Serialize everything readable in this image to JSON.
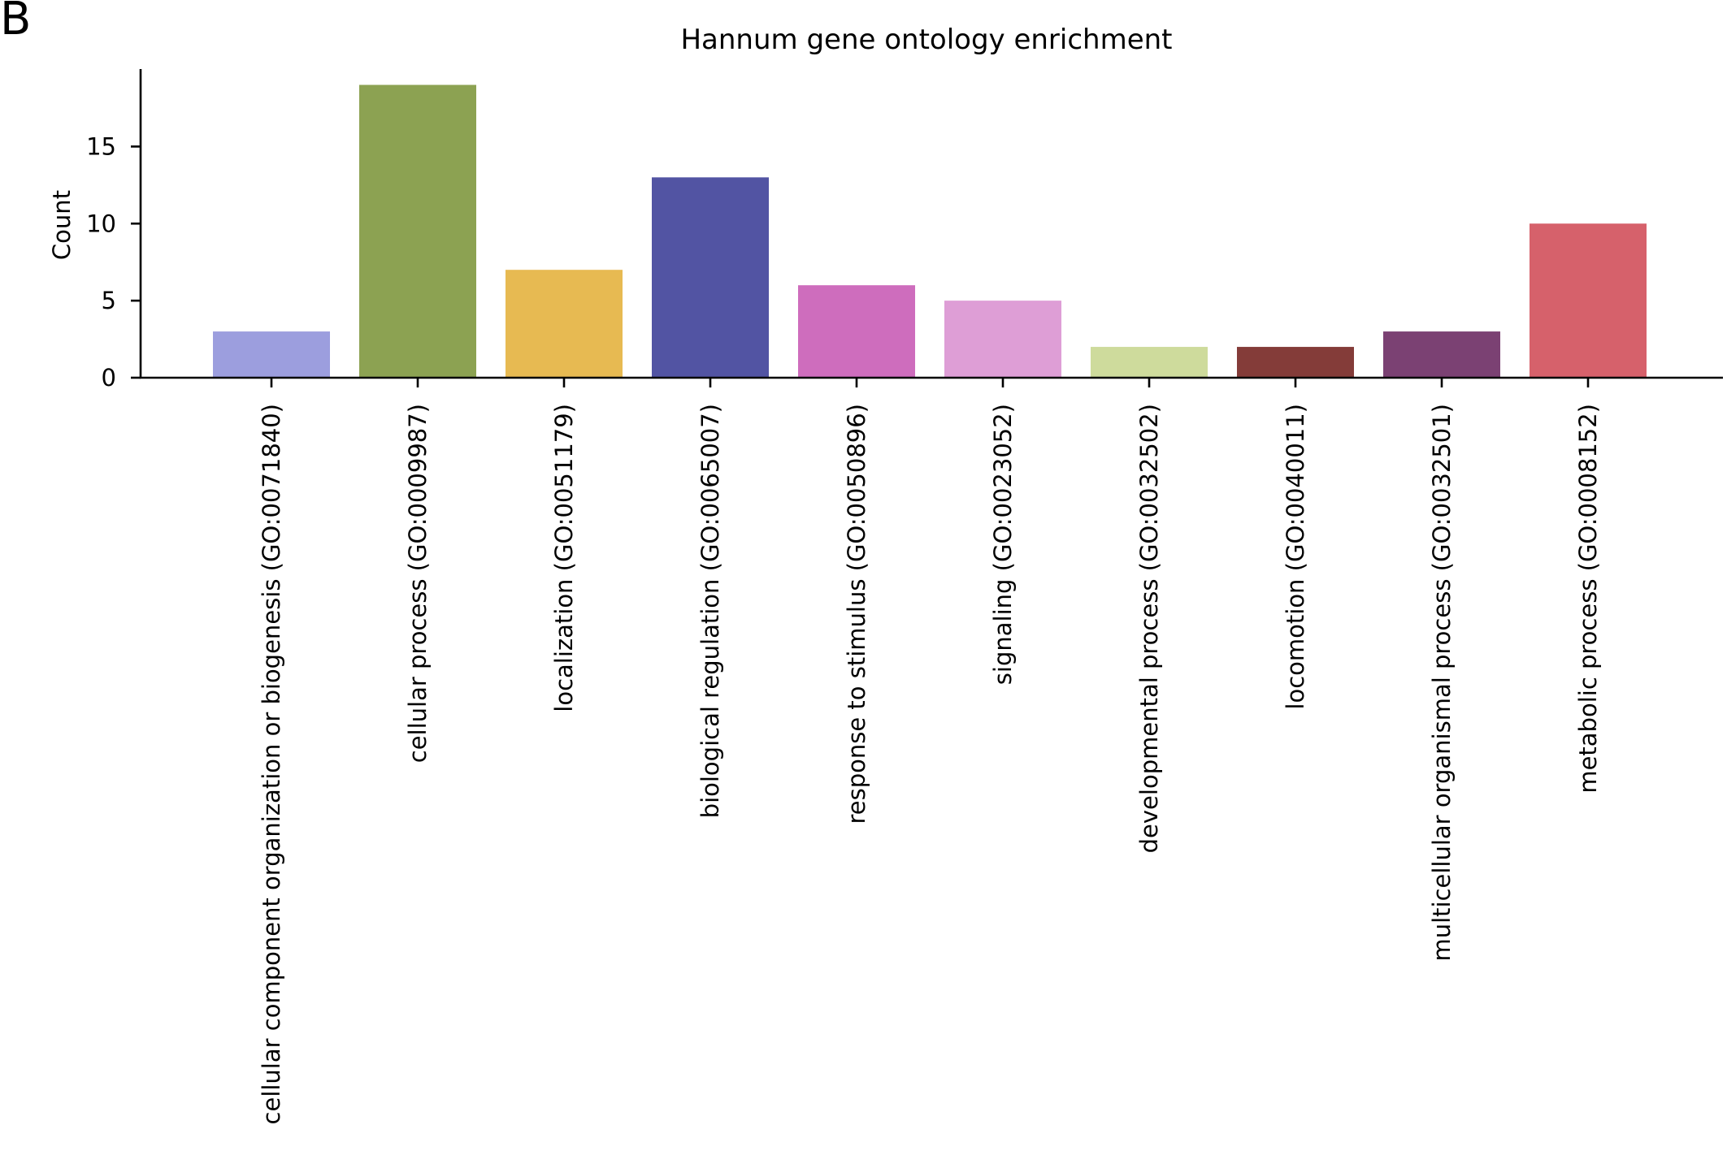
{
  "panel_label": "B",
  "chart_data": {
    "type": "bar",
    "title": "Hannum gene ontology enrichment",
    "xlabel": "",
    "ylabel": "Count",
    "ylim": [
      0,
      20
    ],
    "yticks": [
      0,
      5,
      10,
      15
    ],
    "grid": false,
    "legend": "none",
    "categories": [
      "cellular component organization or biogenesis (GO:0071840)",
      "cellular process (GO:0009987)",
      "localization (GO:0051179)",
      "biological regulation (GO:0065007)",
      "response to stimulus (GO:0050896)",
      "signaling (GO:0023052)",
      "developmental process (GO:0032502)",
      "locomotion (GO:0040011)",
      "multicellular organismal process (GO:0032501)",
      "metabolic process (GO:0008152)"
    ],
    "values": [
      3,
      19,
      7,
      13,
      6,
      5,
      2,
      2,
      3,
      10
    ],
    "colors": [
      "#9c9ede",
      "#8ca252",
      "#e7ba52",
      "#5254a3",
      "#ce6dbd",
      "#de9ed6",
      "#cedb9c",
      "#843c39",
      "#7b4173",
      "#d6616b"
    ]
  }
}
